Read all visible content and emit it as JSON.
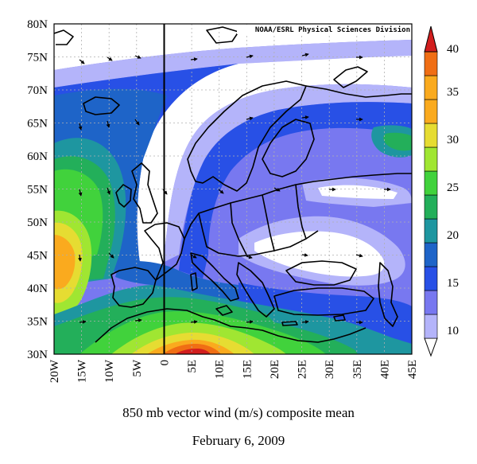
{
  "credit": "NOAA/ESRL Physical Sciences Division",
  "caption": {
    "title": "850 mb vector wind (m/s) composite mean",
    "date": "February 6, 2009"
  },
  "axes": {
    "lat_labels": [
      "30N",
      "35N",
      "40N",
      "45N",
      "50N",
      "55N",
      "60N",
      "65N",
      "70N",
      "75N",
      "80N"
    ],
    "lon_labels": [
      "20W",
      "15W",
      "10W",
      "5W",
      "0",
      "5E",
      "10E",
      "15E",
      "20E",
      "25E",
      "30E",
      "35E",
      "40E",
      "45E"
    ]
  },
  "colorbar": {
    "labels": [
      "10",
      "15",
      "20",
      "25",
      "30",
      "35",
      "40"
    ],
    "colors": [
      "#ffffff",
      "#b4b4fa",
      "#7878f0",
      "#2850e6",
      "#1e64c8",
      "#1e96a0",
      "#23af5a",
      "#41d23c",
      "#a0e632",
      "#e6dc32",
      "#faaa1e",
      "#f06e14",
      "#d21e1e"
    ]
  },
  "map_extent": {
    "lon": [
      -20,
      45
    ],
    "lat": [
      30,
      80
    ]
  }
}
